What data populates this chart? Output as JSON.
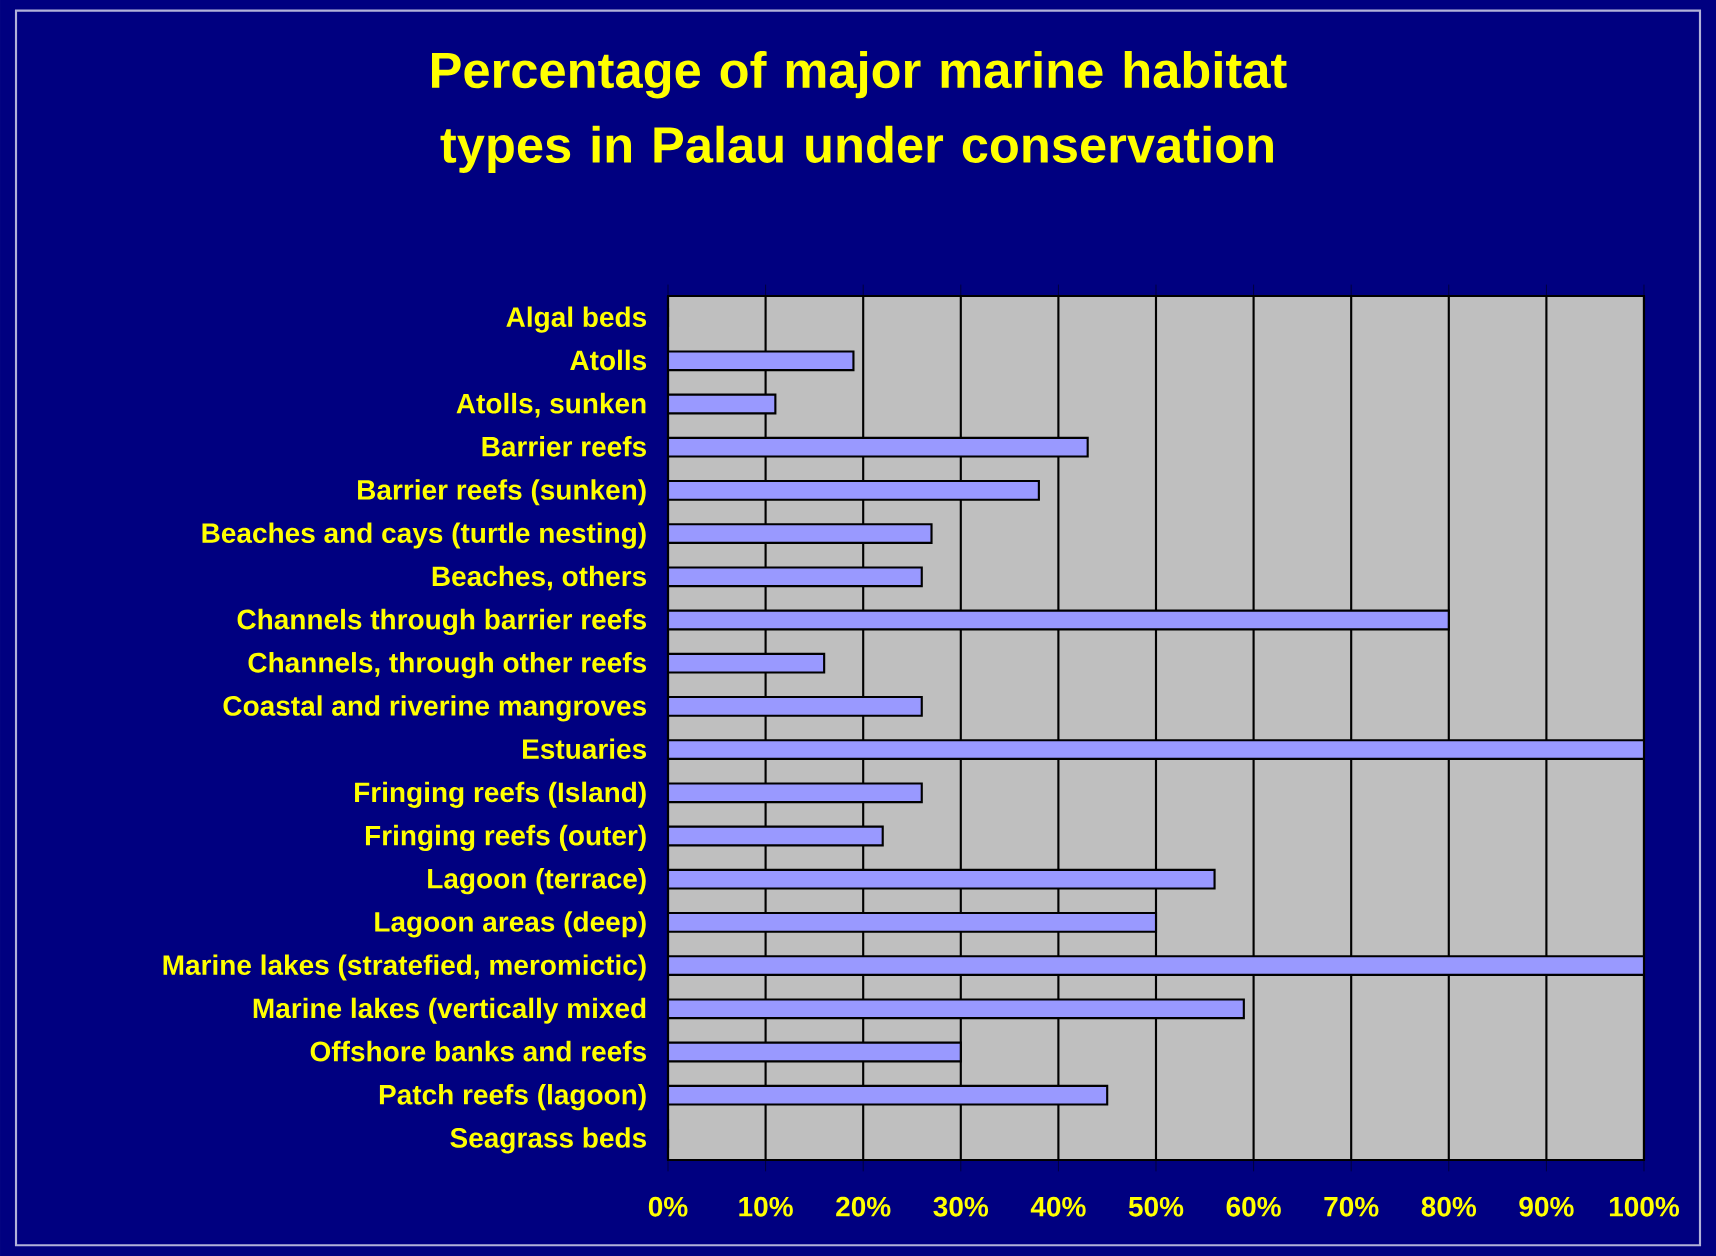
{
  "chart_data": {
    "type": "bar",
    "orientation": "horizontal",
    "title": "Percentage of major marine habitat types in Palau under conservation",
    "categories": [
      "Algal beds",
      "Atolls",
      "Atolls, sunken",
      "Barrier reefs",
      "Barrier reefs (sunken)",
      "Beaches and cays (turtle nesting)",
      "Beaches, others",
      "Channels through barrier reefs",
      "Channels, through other reefs",
      "Coastal and riverine mangroves",
      "Estuaries",
      "Fringing reefs (Island)",
      "Fringing reefs (outer)",
      "Lagoon (terrace)",
      "Lagoon areas (deep)",
      "Marine lakes (stratefied, meromictic)",
      "Marine lakes (vertically mixed",
      "Offshore banks and reefs",
      "Patch reefs (lagoon)",
      "Seagrass beds"
    ],
    "values": [
      0,
      19,
      11,
      43,
      38,
      27,
      26,
      80,
      16,
      26,
      100,
      26,
      22,
      56,
      50,
      100,
      59,
      30,
      45,
      0
    ],
    "color": "#9999ff",
    "xlim": [
      0,
      100
    ],
    "xticks": [
      {
        "value": 0,
        "label": "0%"
      },
      {
        "value": 10,
        "label": "10%"
      },
      {
        "value": 20,
        "label": "20%"
      },
      {
        "value": 30,
        "label": "30%"
      },
      {
        "value": 40,
        "label": "40%"
      },
      {
        "value": 50,
        "label": "50%"
      },
      {
        "value": 60,
        "label": "60%"
      },
      {
        "value": 70,
        "label": "70%"
      },
      {
        "value": 80,
        "label": "80%"
      },
      {
        "value": 90,
        "label": "90%"
      },
      {
        "value": 100,
        "label": "100%"
      }
    ],
    "grid": "x"
  }
}
